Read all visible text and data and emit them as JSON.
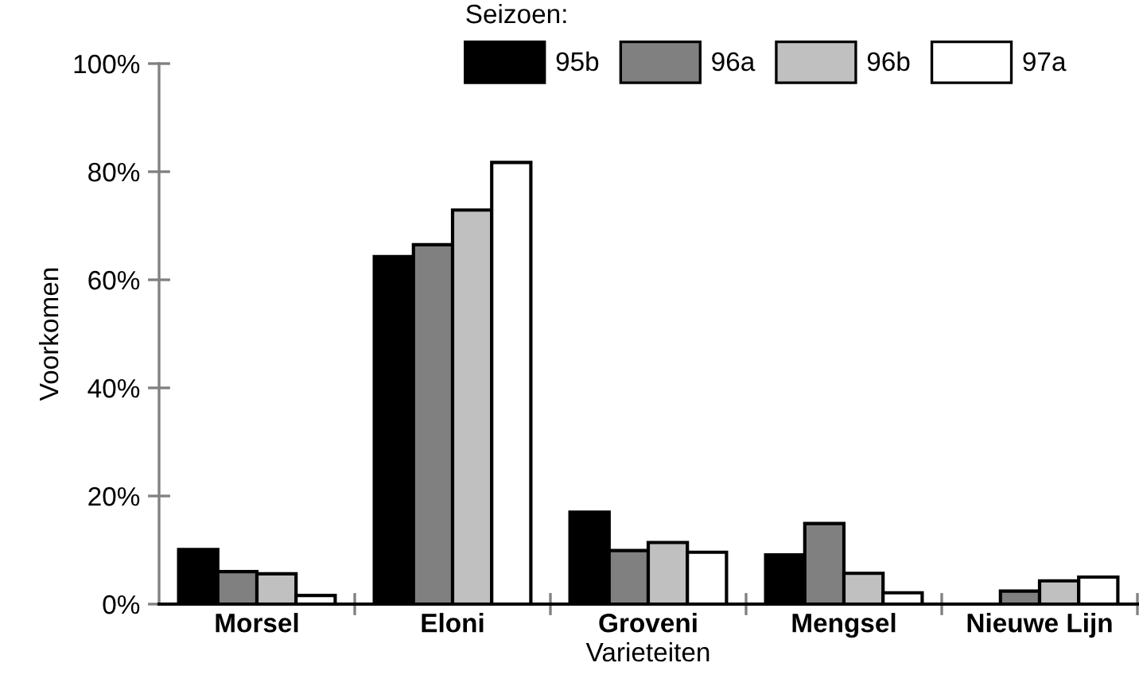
{
  "chart_data": {
    "type": "bar",
    "xlabel": "Varieteiten",
    "ylabel": "Voorkomen",
    "legend_title": "Seizoen:",
    "legend": "top",
    "categories": [
      "Morsel",
      "Eloni",
      "Groveni",
      "Mengsel",
      "Nieuwe Lijn"
    ],
    "series": [
      {
        "name": "95b",
        "color": "#000000",
        "values": [
          10.1,
          64.3,
          17.0,
          9.1,
          0
        ]
      },
      {
        "name": "96a",
        "color": "#808080",
        "values": [
          6.0,
          66.5,
          9.9,
          14.9,
          2.4
        ]
      },
      {
        "name": "96b",
        "color": "#c0c0c0",
        "values": [
          5.6,
          72.9,
          11.4,
          5.7,
          4.3
        ]
      },
      {
        "name": "97a",
        "color": "#ffffff",
        "values": [
          1.6,
          81.7,
          9.6,
          2.1,
          5.0
        ]
      }
    ],
    "ylim": [
      0,
      100
    ],
    "yticks": [
      {
        "value": 0,
        "label": "0%"
      },
      {
        "value": 20,
        "label": "20%"
      },
      {
        "value": 40,
        "label": "40%"
      },
      {
        "value": 60,
        "label": "60%"
      },
      {
        "value": 80,
        "label": "80%"
      },
      {
        "value": 100,
        "label": "100%"
      }
    ],
    "grid": false
  }
}
